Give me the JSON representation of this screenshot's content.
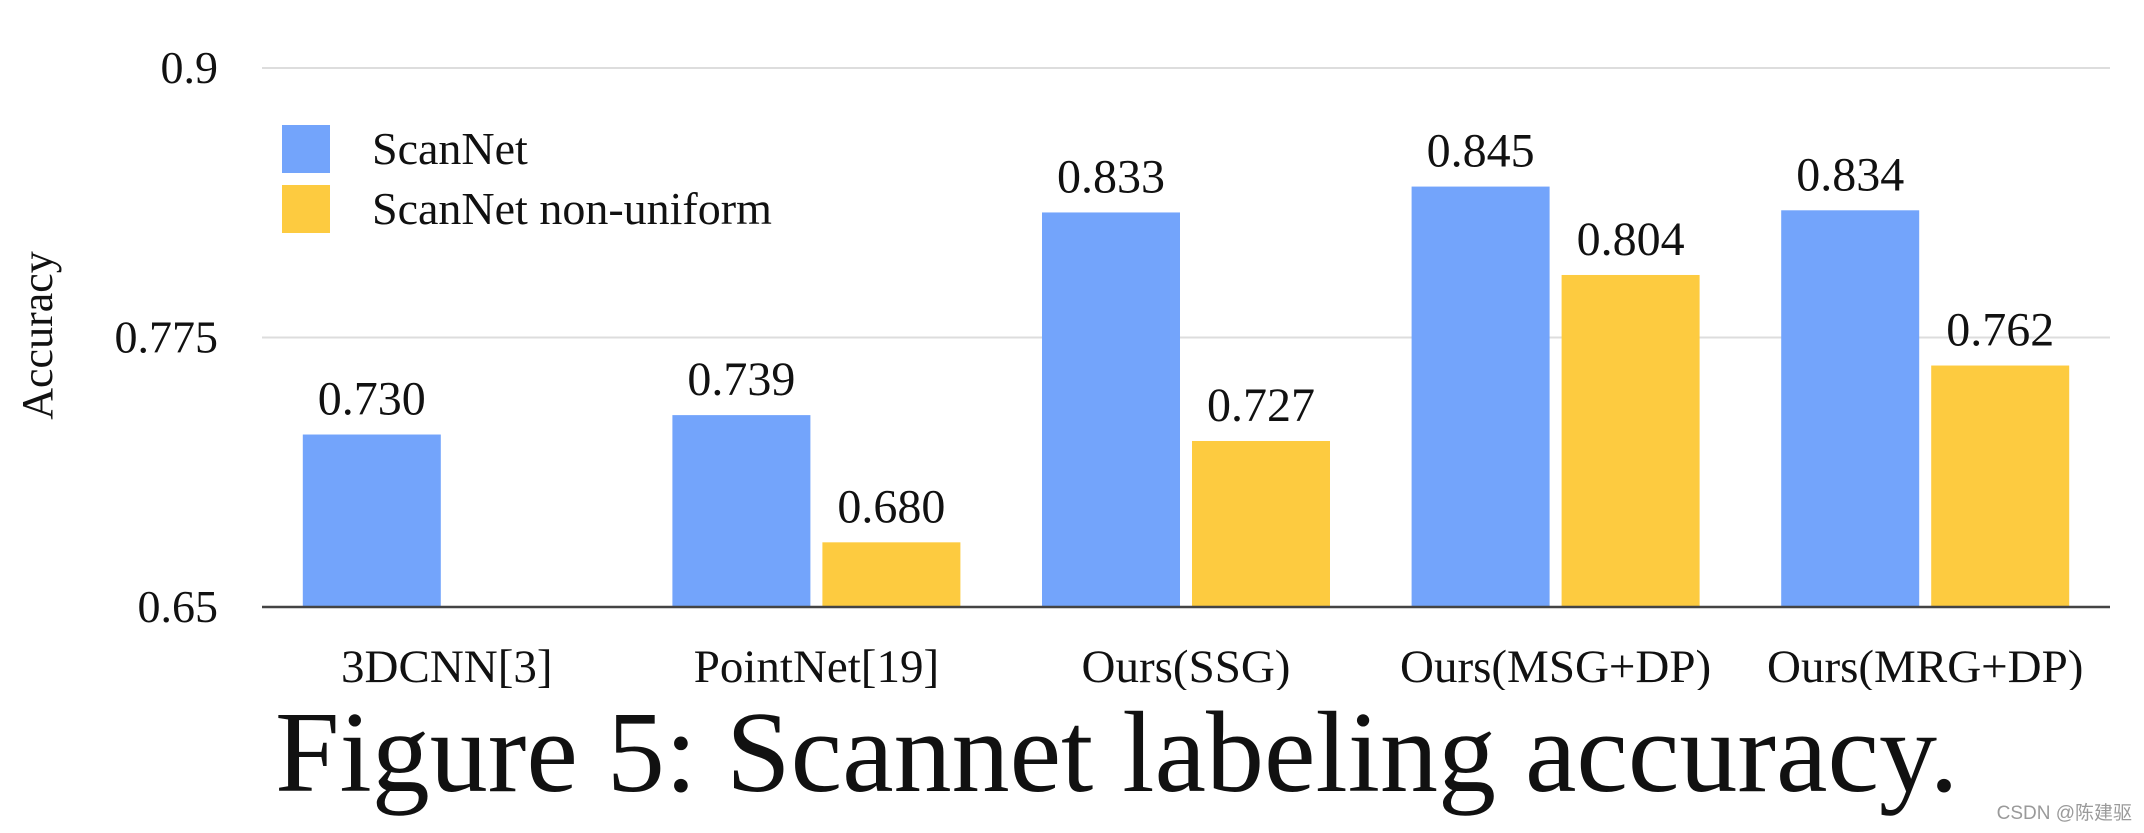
{
  "chart_data": {
    "type": "bar",
    "categories": [
      "3DCNN[3]",
      "PointNet[19]",
      "Ours(SSG)",
      "Ours(MSG+DP)",
      "Ours(MRG+DP)"
    ],
    "series": [
      {
        "name": "ScanNet",
        "color": "#73A4FB",
        "values": [
          0.73,
          0.739,
          0.833,
          0.845,
          0.834
        ],
        "labels": [
          "0.730",
          "0.739",
          "0.833",
          "0.845",
          "0.834"
        ]
      },
      {
        "name": "ScanNet non-uniform",
        "color": "#FDCB40",
        "values": [
          null,
          0.68,
          0.727,
          0.804,
          0.762
        ],
        "labels": [
          null,
          "0.680",
          "0.727",
          "0.804",
          "0.762"
        ]
      }
    ],
    "ylabel": "Accuracy",
    "xlabel": "",
    "ylim": [
      0.65,
      0.9
    ],
    "yticks": [
      0.65,
      0.775,
      0.9
    ],
    "ytick_labels": [
      "0.65",
      "0.775",
      "0.9"
    ],
    "grid": true,
    "legend_position": "top-left"
  },
  "caption": "Figure 5: Scannet labeling accuracy.",
  "watermark": "CSDN @陈建驱"
}
